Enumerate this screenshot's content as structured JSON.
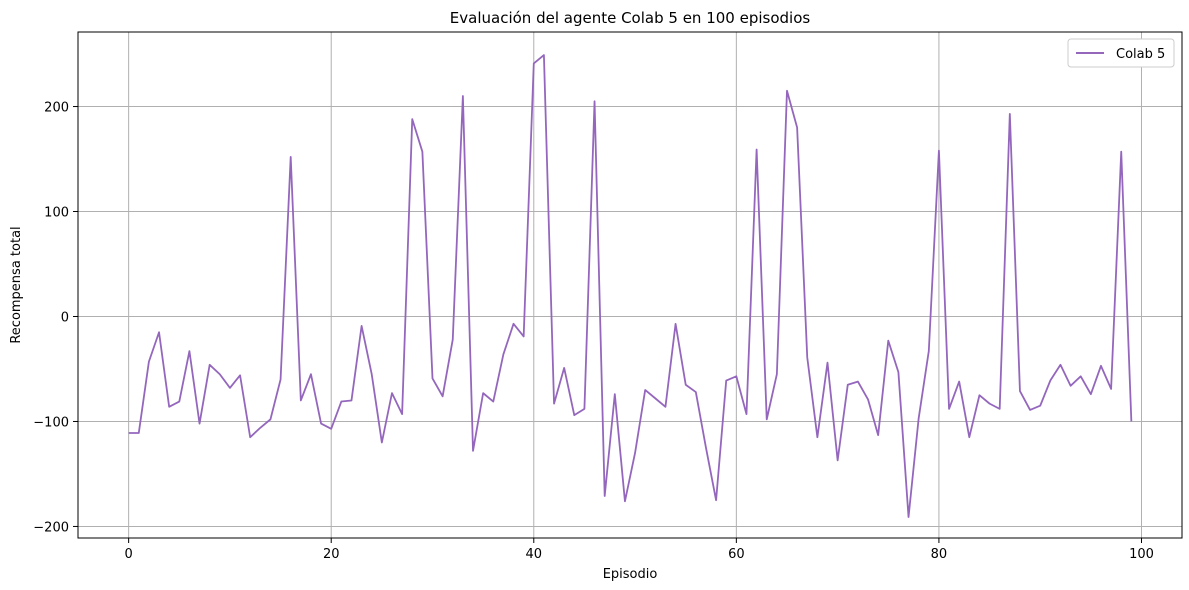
{
  "chart_data": {
    "type": "line",
    "title": "Evaluación del agente Colab 5 en 100 episodios",
    "xlabel": "Episodio",
    "ylabel": "Recompensa total",
    "xlim": [
      -5,
      104
    ],
    "ylim": [
      -211,
      271
    ],
    "xticks": [
      0,
      20,
      40,
      60,
      80,
      100
    ],
    "yticks": [
      -200,
      -100,
      0,
      100,
      200
    ],
    "grid": true,
    "legend_position": "top-right",
    "series": [
      {
        "name": "Colab 5",
        "color": "#9467bd",
        "x": [
          0,
          1,
          2,
          3,
          4,
          5,
          6,
          7,
          8,
          9,
          10,
          11,
          12,
          13,
          14,
          15,
          16,
          17,
          18,
          19,
          20,
          21,
          22,
          23,
          24,
          25,
          26,
          27,
          28,
          29,
          30,
          31,
          32,
          33,
          34,
          35,
          36,
          37,
          38,
          39,
          40,
          41,
          42,
          43,
          44,
          45,
          46,
          47,
          48,
          49,
          50,
          51,
          52,
          53,
          54,
          55,
          56,
          57,
          58,
          59,
          60,
          61,
          62,
          63,
          64,
          65,
          66,
          67,
          68,
          69,
          70,
          71,
          72,
          73,
          74,
          75,
          76,
          77,
          78,
          79,
          80,
          81,
          82,
          83,
          84,
          85,
          86,
          87,
          88,
          89,
          90,
          91,
          92,
          93,
          94,
          95,
          96,
          97,
          98,
          99
        ],
        "values": [
          -111,
          -111,
          -43,
          -15,
          -86,
          -81,
          -33,
          -102,
          -46,
          -55,
          -68,
          -56,
          -115,
          -106,
          -98,
          -60,
          152,
          -80,
          -55,
          -102,
          -107,
          -81,
          -80,
          -9,
          -55,
          -120,
          -73,
          -93,
          188,
          157,
          -59,
          -76,
          -22,
          210,
          -128,
          -73,
          -81,
          -36,
          -7,
          -19,
          241,
          249,
          -83,
          -49,
          -94,
          -88,
          205,
          -171,
          -74,
          -176,
          -130,
          -70,
          -78,
          -86,
          -7,
          -65,
          -72,
          -125,
          -175,
          -61,
          -57,
          -93,
          159,
          -98,
          -55,
          215,
          180,
          -39,
          -115,
          -44,
          -137,
          -65,
          -62,
          -79,
          -113,
          -23,
          -53,
          -191,
          -97,
          -33,
          158,
          -88,
          -62,
          -115,
          -75,
          -83,
          -88,
          193,
          -71,
          -89,
          -85,
          -61,
          -46,
          -66,
          -57,
          -74,
          -47,
          -69,
          157,
          -100
        ]
      }
    ]
  }
}
